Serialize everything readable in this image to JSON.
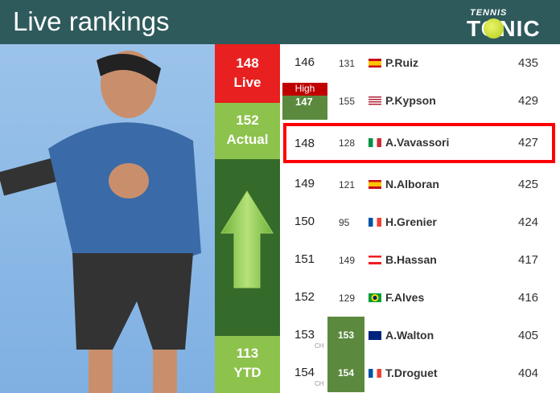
{
  "header": {
    "title": "Live rankings",
    "logo_top": "TENNIS",
    "logo_bottom": "TONIC"
  },
  "summary": {
    "live_rank": "148",
    "live_label": "Live",
    "actual_rank": "152",
    "actual_label": "Actual",
    "ytd_rank": "113",
    "ytd_label": "YTD",
    "direction": "up-arrow-icon"
  },
  "colors": {
    "live": "#e82020",
    "actual": "#8dc24c",
    "arrow_bg": "#356b2a",
    "highlight": "#ff0000",
    "badge_green": "#5b8a3e",
    "high_badge": "#c00000"
  },
  "rows": [
    {
      "rank": "146",
      "prev": "131",
      "flag": "ES",
      "name": "P.Ruiz",
      "points": "435"
    },
    {
      "rank": "147",
      "prev": "155",
      "flag": "US",
      "name": "P.Kypson",
      "points": "429",
      "badge": "High"
    },
    {
      "rank": "148",
      "prev": "128",
      "flag": "IT",
      "name": "A.Vavassori",
      "points": "427",
      "highlighted": true
    },
    {
      "rank": "149",
      "prev": "121",
      "flag": "ES",
      "name": "N.Alboran",
      "points": "425"
    },
    {
      "rank": "150",
      "prev": "95",
      "flag": "FR",
      "name": "H.Grenier",
      "points": "424"
    },
    {
      "rank": "151",
      "prev": "149",
      "flag": "LB",
      "name": "B.Hassan",
      "points": "417"
    },
    {
      "rank": "152",
      "prev": "129",
      "flag": "BR",
      "name": "F.Alves",
      "points": "416"
    },
    {
      "rank": "153",
      "prev": "153",
      "flag": "AU",
      "name": "A.Walton",
      "points": "405",
      "ch": "CH"
    },
    {
      "rank": "154",
      "prev": "154",
      "flag": "FR",
      "name": "T.Droguet",
      "points": "404",
      "ch": "CH"
    }
  ]
}
